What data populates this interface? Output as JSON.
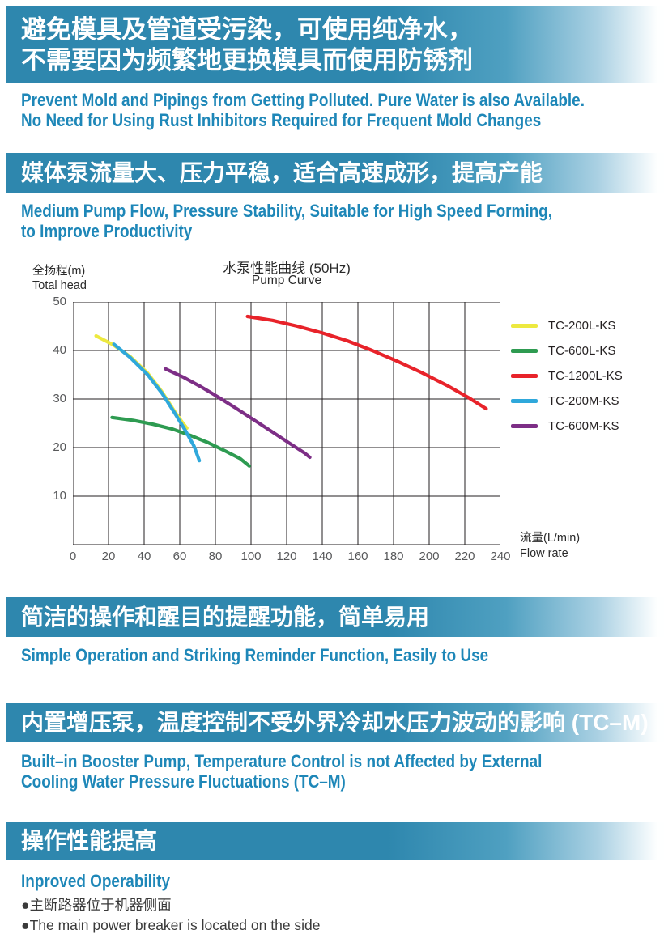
{
  "page": {
    "accent_teal": "#2E87AE",
    "heading_blue": "#1E87B8",
    "banner_text_color": "#FFFFFF",
    "body_text_color": "#3A3A3A"
  },
  "banners": {
    "b1": {
      "line1": "避免模具及管道受污染，可使用纯净水，",
      "line2": "不需要因为频繁地更换模具而使用防锈剂"
    },
    "b2": {
      "line1": "媒体泵流量大、压力平稳，适合高速成形，提高产能"
    },
    "b3": {
      "line1": "简洁的操作和醒目的提醒功能，简单易用"
    },
    "b4": {
      "line1": "内置增压泵，温度控制不受外界冷却水压力波动的影响 (TC–M)"
    },
    "b5": {
      "line1": "操作性能提高"
    }
  },
  "subheads": {
    "s1": {
      "line1": "Prevent Mold and Pipings from Getting Polluted. Pure Water is also Available.",
      "line2": "No Need for Using Rust Inhibitors Required for Frequent Mold Changes"
    },
    "s2": {
      "line1": "Medium Pump Flow, Pressure Stability, Suitable for High Speed Forming,",
      "line2": "to Improve Productivity"
    },
    "s3": {
      "line1": "Simple Operation and Striking Reminder Function, Easily to Use"
    },
    "s4": {
      "line1": "Built–in Booster Pump, Temperature Control is not Affected by External",
      "line2": "Cooling Water Pressure Fluctuations (TC–M)"
    },
    "s5": {
      "line1": "Inproved Operability"
    }
  },
  "bullets": {
    "zh": "●主断路器位于机器侧面",
    "en": "●The main power breaker is located on the side"
  },
  "chart_data": {
    "type": "line",
    "title_zh": "水泵性能曲线 (50Hz)",
    "title_en": "Pump Curve",
    "ylabel_zh": "全扬程(m)",
    "ylabel_en": "Total head",
    "xlabel_zh": "流量(L/min)",
    "xlabel_en": "Flow rate",
    "xlim": [
      0,
      240
    ],
    "ylim": [
      0,
      50
    ],
    "x_ticks": [
      0,
      20,
      40,
      60,
      80,
      100,
      120,
      140,
      160,
      180,
      200,
      220,
      240
    ],
    "y_ticks": [
      10,
      20,
      30,
      40,
      50
    ],
    "x_grid_step": 20,
    "y_grid_step": 10,
    "grid": true,
    "legend_position": "right",
    "grid_color": "#231F20",
    "series": [
      {
        "name": "TC-200L-KS",
        "color": "#EDE93F",
        "points": [
          [
            13,
            43
          ],
          [
            22,
            41.3
          ],
          [
            32,
            38.8
          ],
          [
            42,
            35.3
          ],
          [
            50,
            31.5
          ],
          [
            57,
            27.5
          ],
          [
            61,
            25.4
          ],
          [
            64,
            24
          ]
        ]
      },
      {
        "name": "TC-600L-KS",
        "color": "#2E9B51",
        "points": [
          [
            22,
            26.2
          ],
          [
            34,
            25.6
          ],
          [
            45,
            24.8
          ],
          [
            56,
            23.8
          ],
          [
            66,
            22.5
          ],
          [
            76,
            21
          ],
          [
            86,
            19.2
          ],
          [
            94,
            17.7
          ],
          [
            99,
            16.2
          ]
        ]
      },
      {
        "name": "TC-1200L-KS",
        "color": "#E8232A",
        "points": [
          [
            98,
            47
          ],
          [
            112,
            46.2
          ],
          [
            126,
            45
          ],
          [
            140,
            43.6
          ],
          [
            154,
            42
          ],
          [
            168,
            40
          ],
          [
            182,
            37.8
          ],
          [
            196,
            35.4
          ],
          [
            210,
            32.8
          ],
          [
            222,
            30.3
          ],
          [
            232,
            28
          ]
        ]
      },
      {
        "name": "TC-200M-KS",
        "color": "#2FA8DB",
        "points": [
          [
            23,
            41.3
          ],
          [
            32,
            38.6
          ],
          [
            42,
            35
          ],
          [
            50,
            31.2
          ],
          [
            57,
            27.2
          ],
          [
            63,
            23.6
          ],
          [
            68,
            20.3
          ],
          [
            71,
            17.3
          ]
        ]
      },
      {
        "name": "TC-600M-KS",
        "color": "#7D2E86",
        "points": [
          [
            52,
            36.2
          ],
          [
            62,
            34.5
          ],
          [
            72,
            32.5
          ],
          [
            82,
            30.3
          ],
          [
            92,
            28
          ],
          [
            102,
            25.6
          ],
          [
            112,
            23.2
          ],
          [
            122,
            20.8
          ],
          [
            130,
            18.9
          ],
          [
            133,
            18
          ]
        ]
      }
    ]
  }
}
